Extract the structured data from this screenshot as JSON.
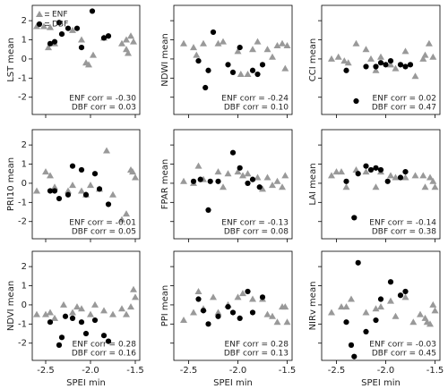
{
  "chart_data": [
    {
      "type": "scatter",
      "ylabel": "LST mean",
      "xlim": [
        -2.65,
        -1.45
      ],
      "xticks": [
        -2.5,
        -2,
        -1.5
      ],
      "ylim": [
        -2.9,
        2.8
      ],
      "yticks": [
        -2,
        -1,
        0,
        1,
        2
      ],
      "legend": "upper left",
      "annotations": [
        "ENF corr = -0.30",
        "DBF corr = 0.03"
      ],
      "series": [
        {
          "name": "ENF",
          "color": "#999999",
          "marker": "triangle",
          "x": [
            -2.6,
            -2.52,
            -2.45,
            -2.4,
            -2.47,
            -2.2,
            -2.1,
            -2.05,
            -2.02,
            -1.97,
            -1.85,
            -1.65,
            -1.6,
            -1.58,
            -1.55,
            -1.6,
            -1.52
          ],
          "values": [
            1.7,
            1.7,
            1.65,
            0.8,
            0.6,
            1.5,
            1.0,
            -0.2,
            -0.3,
            0.2,
            1.1,
            0.8,
            0.5,
            0.3,
            1.2,
            1.0,
            0.9
          ]
        },
        {
          "name": "DBF",
          "color": "#000000",
          "marker": "circle",
          "x": [
            -2.45,
            -2.4,
            -2.35,
            -2.32,
            -2.25,
            -2.15,
            -2.1,
            -1.98,
            -1.85,
            -1.8
          ],
          "values": [
            0.8,
            0.9,
            1.9,
            1.3,
            1.6,
            1.6,
            0.6,
            2.5,
            1.1,
            1.2
          ]
        }
      ]
    },
    {
      "type": "scatter",
      "ylabel": "NDWI mean",
      "xlim": [
        -2.65,
        -1.45
      ],
      "xticks": [
        -2.5,
        -2,
        -1.5
      ],
      "ylim": [
        -2.9,
        2.8
      ],
      "yticks": [
        -2,
        -1,
        0,
        1,
        2
      ],
      "annotations": [
        "ENF corr = -0.24",
        "DBF corr = 0.10"
      ],
      "series": [
        {
          "color": "#999999",
          "marker": "triangle",
          "x": [
            -2.55,
            -2.45,
            -2.42,
            -2.35,
            -2.2,
            -2.15,
            -2.0,
            -1.97,
            -1.9,
            -1.85,
            -1.8,
            -1.7,
            -1.65,
            -1.6,
            -1.55,
            -1.5,
            -1.52
          ],
          "values": [
            0.8,
            0.6,
            0.2,
            0.8,
            0.8,
            0.9,
            0.4,
            -0.8,
            -0.8,
            0.5,
            0.9,
            0.5,
            0.1,
            0.7,
            0.8,
            0.7,
            -0.5
          ]
        },
        {
          "color": "#000000",
          "marker": "circle",
          "x": [
            -2.4,
            -2.33,
            -2.3,
            -2.25,
            -2.1,
            -2.05,
            -1.98,
            -1.85,
            -1.8,
            -1.75
          ],
          "values": [
            -0.1,
            -1.5,
            -0.6,
            1.4,
            -0.3,
            -0.7,
            0.6,
            -0.6,
            -0.8,
            -0.3
          ]
        }
      ]
    },
    {
      "type": "scatter",
      "ylabel": "CCI mean",
      "xlim": [
        -2.65,
        -1.45
      ],
      "xticks": [
        -2.5,
        -2,
        -1.5
      ],
      "ylim": [
        -2.9,
        2.8
      ],
      "yticks": [
        -2,
        -1,
        0,
        1,
        2
      ],
      "annotations": [
        "ENF corr = 0.02",
        "DBF corr = 0.47"
      ],
      "series": [
        {
          "color": "#999999",
          "marker": "triangle",
          "x": [
            -2.55,
            -2.48,
            -2.42,
            -2.38,
            -2.3,
            -2.2,
            -2.15,
            -2.1,
            -2.05,
            -1.95,
            -1.9,
            -1.8,
            -1.7,
            -1.62,
            -1.6,
            -1.56,
            -1.52
          ],
          "values": [
            0.0,
            0.1,
            -0.1,
            -0.2,
            0.8,
            0.5,
            0.0,
            -0.6,
            0.1,
            -0.3,
            -0.5,
            0.4,
            -0.9,
            0.0,
            0.2,
            0.8,
            0.1
          ]
        },
        {
          "color": "#000000",
          "marker": "circle",
          "x": [
            -2.4,
            -2.3,
            -2.2,
            -2.1,
            -2.05,
            -2.0,
            -1.95,
            -1.85,
            -1.8,
            -1.75
          ],
          "values": [
            -0.6,
            -2.2,
            -0.4,
            -0.4,
            -0.2,
            -0.3,
            -0.1,
            -0.3,
            -0.4,
            -0.3
          ]
        }
      ]
    },
    {
      "type": "scatter",
      "ylabel": "PRI10 mean",
      "xlim": [
        -2.65,
        -1.45
      ],
      "xticks": [
        -2.5,
        -2,
        -1.5
      ],
      "ylim": [
        -2.9,
        2.8
      ],
      "yticks": [
        -2,
        -1,
        0,
        1,
        2
      ],
      "annotations": [
        "ENF corr = -0.01",
        "DBF corr = 0.05"
      ],
      "series": [
        {
          "color": "#999999",
          "marker": "triangle",
          "x": [
            -2.6,
            -2.5,
            -2.45,
            -2.4,
            -2.25,
            -2.2,
            -2.1,
            -2.05,
            -2.0,
            -1.9,
            -1.82,
            -1.75,
            -1.65,
            -1.6,
            -1.55,
            -1.53,
            -1.5
          ],
          "values": [
            -0.4,
            0.6,
            0.4,
            -0.2,
            -0.4,
            -0.1,
            -0.4,
            -0.6,
            -0.1,
            -0.3,
            1.7,
            -0.6,
            -1.9,
            -1.6,
            0.7,
            0.6,
            0.3
          ]
        },
        {
          "color": "#000000",
          "marker": "circle",
          "x": [
            -2.45,
            -2.4,
            -2.35,
            -2.25,
            -2.2,
            -2.1,
            -2.05,
            -1.95,
            -1.9,
            -1.8
          ],
          "values": [
            -0.4,
            -0.4,
            -0.8,
            -0.6,
            0.9,
            0.7,
            -0.6,
            0.5,
            -0.3,
            -1.1
          ]
        }
      ]
    },
    {
      "type": "scatter",
      "ylabel": "FPAR mean",
      "xlim": [
        -2.65,
        -1.45
      ],
      "xticks": [
        -2.5,
        -2,
        -1.5
      ],
      "ylim": [
        -2.9,
        2.8
      ],
      "yticks": [
        -2,
        -1,
        0,
        1,
        2
      ],
      "annotations": [
        "ENF corr = -0.13",
        "DBF corr = 0.08"
      ],
      "series": [
        {
          "color": "#999999",
          "marker": "triangle",
          "x": [
            -2.55,
            -2.45,
            -2.4,
            -2.35,
            -2.2,
            -2.15,
            -2.1,
            -2.0,
            -1.95,
            -1.9,
            -1.8,
            -1.75,
            -1.7,
            -1.65,
            -1.6,
            -1.55,
            -1.52
          ],
          "values": [
            0.1,
            0.0,
            0.9,
            0.2,
            0.6,
            -0.2,
            0.5,
            0.6,
            0.4,
            0.5,
            0.3,
            -0.3,
            0.3,
            -0.1,
            0.1,
            -0.2,
            0.4
          ]
        },
        {
          "color": "#000000",
          "marker": "circle",
          "x": [
            -2.45,
            -2.38,
            -2.3,
            -2.28,
            -2.2,
            -2.05,
            -1.98,
            -1.9,
            -1.85,
            -1.78
          ],
          "values": [
            0.1,
            0.2,
            -1.4,
            0.1,
            0.1,
            1.6,
            0.8,
            0.0,
            0.2,
            -0.2
          ]
        }
      ]
    },
    {
      "type": "scatter",
      "ylabel": "LAI mean",
      "xlim": [
        -2.65,
        -1.45
      ],
      "xticks": [
        -2.5,
        -2,
        -1.5
      ],
      "ylim": [
        -2.9,
        2.8
      ],
      "yticks": [
        -2,
        -1,
        0,
        1,
        2
      ],
      "annotations": [
        "ENF corr = -0.14",
        "DBF corr = 0.38"
      ],
      "series": [
        {
          "color": "#999999",
          "marker": "triangle",
          "x": [
            -2.55,
            -2.5,
            -2.45,
            -2.4,
            -2.3,
            -2.2,
            -2.1,
            -2.05,
            -1.95,
            -1.9,
            -1.8,
            -1.7,
            -1.62,
            -1.6,
            -1.55,
            -1.52,
            -1.5
          ],
          "values": [
            0.4,
            0.6,
            0.6,
            -0.2,
            0.7,
            0.6,
            -0.2,
            0.6,
            0.4,
            0.3,
            0.3,
            0.4,
            0.4,
            -0.2,
            0.3,
            0.1,
            -0.2
          ]
        },
        {
          "color": "#000000",
          "marker": "circle",
          "x": [
            -2.4,
            -2.32,
            -2.28,
            -2.2,
            -2.15,
            -2.1,
            -2.05,
            -1.98,
            -1.85,
            -1.8
          ],
          "values": [
            0.1,
            -1.8,
            0.5,
            0.9,
            0.7,
            0.8,
            0.7,
            0.1,
            0.3,
            0.6
          ]
        }
      ]
    },
    {
      "type": "scatter",
      "ylabel": "NDVI mean",
      "xlabel": "SPEI min",
      "xlim": [
        -2.65,
        -1.45
      ],
      "xticks": [
        -2.5,
        {
          "value": -2,
          "label": "-2.0"
        },
        -1.5
      ],
      "ylim": [
        -2.9,
        2.8
      ],
      "yticks": [
        -2,
        -1,
        0,
        1,
        2
      ],
      "annotations": [
        "ENF corr = 0.28",
        "DBF corr = 0.16"
      ],
      "series": [
        {
          "color": "#999999",
          "marker": "triangle",
          "x": [
            -2.6,
            -2.5,
            -2.45,
            -2.4,
            -2.3,
            -2.2,
            -2.15,
            -2.1,
            -2.0,
            -1.95,
            -1.85,
            -1.75,
            -1.65,
            -1.6,
            -1.55,
            -1.52,
            -1.5
          ],
          "values": [
            -0.5,
            -0.5,
            -0.4,
            -0.7,
            0.0,
            -0.4,
            -0.1,
            -0.2,
            -0.5,
            0.0,
            -0.3,
            -0.5,
            -0.2,
            -0.5,
            -0.1,
            0.8,
            0.4
          ]
        },
        {
          "color": "#000000",
          "marker": "circle",
          "x": [
            -2.45,
            -2.35,
            -2.32,
            -2.28,
            -2.2,
            -2.1,
            -2.05,
            -1.95,
            -1.85,
            -1.8
          ],
          "values": [
            -0.9,
            -2.1,
            -1.7,
            -0.6,
            -0.7,
            -0.9,
            -1.5,
            -0.8,
            -1.6,
            -1.9
          ]
        }
      ]
    },
    {
      "type": "scatter",
      "ylabel": "PPI mean",
      "xlabel": "SPEI min",
      "xlim": [
        -2.65,
        -1.45
      ],
      "xticks": [
        -2.5,
        {
          "value": -2,
          "label": "-2.0"
        },
        -1.5
      ],
      "ylim": [
        -2.9,
        2.8
      ],
      "yticks": [
        -2,
        -1,
        0,
        1,
        2
      ],
      "annotations": [
        "ENF corr = 0.28",
        "DBF corr = 0.13"
      ],
      "series": [
        {
          "color": "#999999",
          "marker": "triangle",
          "x": [
            -2.55,
            -2.45,
            -2.4,
            -2.35,
            -2.25,
            -2.2,
            -2.1,
            -2.0,
            -1.95,
            -1.85,
            -1.75,
            -1.7,
            -1.65,
            -1.6,
            -1.55,
            -1.52,
            -1.5
          ],
          "values": [
            -0.8,
            -0.4,
            0.7,
            -0.2,
            0.4,
            -0.4,
            0.0,
            0.4,
            0.6,
            0.3,
            0.3,
            -0.5,
            -0.6,
            -0.9,
            -0.1,
            -0.1,
            -0.9
          ]
        },
        {
          "color": "#000000",
          "marker": "circle",
          "x": [
            -2.4,
            -2.35,
            -2.3,
            -2.2,
            -2.1,
            -2.05,
            -1.98,
            -1.9,
            -1.85,
            -1.75
          ],
          "values": [
            0.3,
            -0.3,
            -1.0,
            -0.6,
            -0.1,
            -0.4,
            -0.7,
            0.7,
            -0.4,
            0.4
          ]
        }
      ]
    },
    {
      "type": "scatter",
      "ylabel": "NIRv mean",
      "xlabel": "SPEI min",
      "xlim": [
        -2.65,
        -1.45
      ],
      "xticks": [
        -2.5,
        {
          "value": -2,
          "label": "-2.0"
        },
        -1.5
      ],
      "ylim": [
        -2.9,
        2.8
      ],
      "yticks": [
        -2,
        -1,
        0,
        1,
        2
      ],
      "annotations": [
        "ENF corr = -0.03",
        "DBF corr = 0.45"
      ],
      "series": [
        {
          "color": "#999999",
          "marker": "triangle",
          "x": [
            -2.55,
            -2.45,
            -2.4,
            -2.35,
            -2.2,
            -2.1,
            -2.05,
            -1.95,
            -1.9,
            -1.8,
            -1.72,
            -1.65,
            -1.6,
            -1.58,
            -1.55,
            -1.52,
            -1.5
          ],
          "values": [
            -0.4,
            -0.1,
            -0.1,
            0.3,
            -0.4,
            -0.2,
            -0.1,
            0.2,
            -0.6,
            0.4,
            -0.9,
            -0.5,
            -0.7,
            -0.9,
            -1.0,
            0.0,
            -0.3
          ]
        },
        {
          "color": "#000000",
          "marker": "circle",
          "x": [
            -2.4,
            -2.35,
            -2.32,
            -2.28,
            -2.2,
            -2.1,
            -2.05,
            -1.95,
            -1.85,
            -1.8
          ],
          "values": [
            -0.9,
            -2.1,
            -2.7,
            2.2,
            -1.4,
            -0.8,
            0.3,
            1.2,
            0.5,
            0.7
          ]
        }
      ]
    }
  ]
}
